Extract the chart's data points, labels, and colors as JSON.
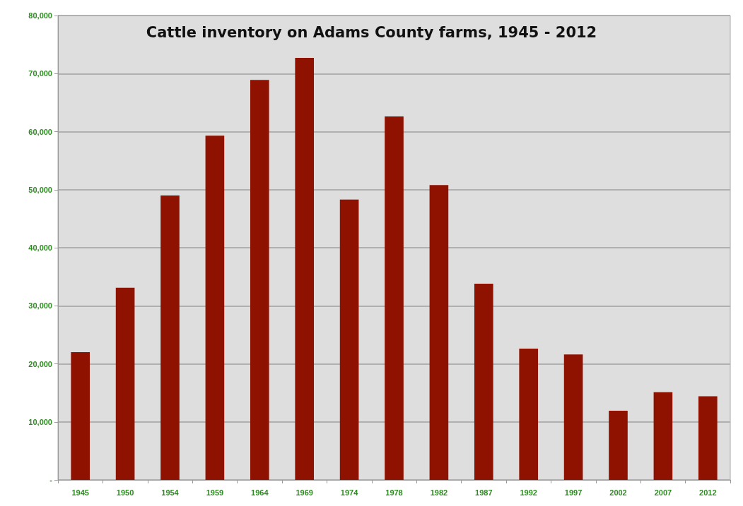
{
  "chart_data": {
    "type": "bar",
    "title": "Cattle inventory on Adams County farms, 1945 - 2012",
    "categories": [
      "1945",
      "1950",
      "1954",
      "1959",
      "1964",
      "1969",
      "1974",
      "1978",
      "1982",
      "1987",
      "1992",
      "1997",
      "2002",
      "2007",
      "2012"
    ],
    "values": [
      22000,
      33100,
      49000,
      59300,
      68900,
      72700,
      48300,
      62600,
      50800,
      33800,
      22600,
      21600,
      11900,
      15100,
      14400
    ],
    "color": "#8f1200",
    "ylim": [
      0,
      80000
    ],
    "yticks": [
      {
        "value": 0,
        "label": "-"
      },
      {
        "value": 10000,
        "label": "10,000"
      },
      {
        "value": 20000,
        "label": "20,000"
      },
      {
        "value": 30000,
        "label": "30,000"
      },
      {
        "value": 40000,
        "label": "40,000"
      },
      {
        "value": 50000,
        "label": "50,000"
      },
      {
        "value": 60000,
        "label": "60,000"
      },
      {
        "value": 70000,
        "label": "70,000"
      },
      {
        "value": 80000,
        "label": "80,000"
      }
    ],
    "grid": "y"
  }
}
